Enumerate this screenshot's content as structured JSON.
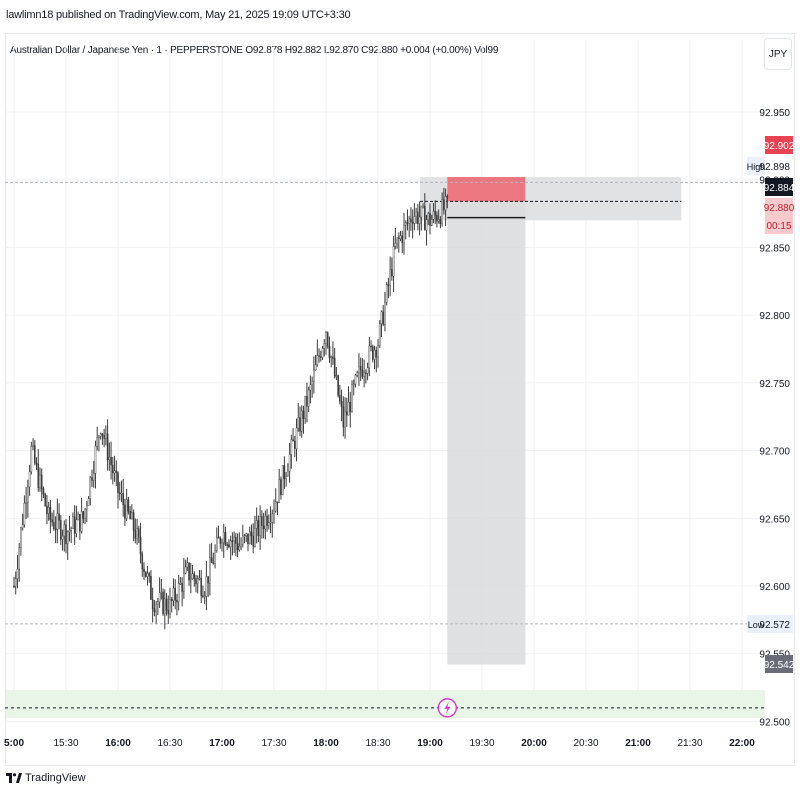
{
  "header": {
    "published_text": "lawlimn18 published on TradingView.com, May 21, 2025 19:09 UTC+3:30"
  },
  "symbol": {
    "description": "Australian Dollar / Japanese Yen · 1 · PEPPERSTONE",
    "ohlc": "O92.878  H92.882  L92.870  C92.880  +0.004 (+0.00%)  Vol99"
  },
  "currency_button": "JPY",
  "brand": {
    "name": "TradingView"
  },
  "colors": {
    "candle": "#3b3b3b",
    "stop_zone": "#ee6b76",
    "target_zone": "#d9dadc",
    "price_red": "#e84352",
    "price_dark": "#131722",
    "green_band": "#e9f5e6"
  },
  "chart_data": {
    "type": "candlestick",
    "title": "",
    "xlabel": "",
    "ylabel": "",
    "ylim": [
      92.5,
      93.0
    ],
    "x_ticks": [
      "5:00",
      "15:30",
      "16:00",
      "16:30",
      "17:00",
      "17:30",
      "18:00",
      "18:30",
      "19:00",
      "19:30",
      "20:00",
      "20:30",
      "21:00",
      "21:30",
      "22:00"
    ],
    "y_ticks": [
      "92.950",
      "92.900",
      "92.850",
      "92.800",
      "92.750",
      "92.700",
      "92.650",
      "92.600",
      "92.550",
      "92.500"
    ],
    "price_path": [
      [
        "15:00",
        92.6
      ],
      [
        "15:10",
        92.7
      ],
      [
        "15:20",
        92.65
      ],
      [
        "15:30",
        92.64
      ],
      [
        "15:40",
        92.65
      ],
      [
        "15:50",
        92.72
      ],
      [
        "16:00",
        92.67
      ],
      [
        "16:10",
        92.64
      ],
      [
        "16:20",
        92.59
      ],
      [
        "16:30",
        92.585
      ],
      [
        "16:40",
        92.61
      ],
      [
        "16:50",
        92.6
      ],
      [
        "17:00",
        92.64
      ],
      [
        "17:10",
        92.63
      ],
      [
        "17:20",
        92.64
      ],
      [
        "17:30",
        92.66
      ],
      [
        "17:40",
        92.7
      ],
      [
        "17:50",
        92.74
      ],
      [
        "18:00",
        92.79
      ],
      [
        "18:10",
        92.72
      ],
      [
        "18:20",
        92.76
      ],
      [
        "18:30",
        92.78
      ],
      [
        "18:40",
        92.85
      ],
      [
        "18:50",
        92.875
      ],
      [
        "19:00",
        92.87
      ],
      [
        "19:10",
        92.88
      ]
    ],
    "session_high": {
      "label": "High",
      "value": "92.898"
    },
    "session_low": {
      "label": "Low",
      "value": "92.572"
    },
    "price_labels": [
      {
        "value": "92.902",
        "style": "red"
      },
      {
        "value": "92.884",
        "style": "dark"
      },
      {
        "value": "92.880",
        "style": "pink"
      },
      {
        "value": "00:15",
        "style": "pink"
      },
      {
        "value": "92.542",
        "style": "gray"
      }
    ],
    "short_position": {
      "entry_time": "19:10",
      "exit_time": "19:55",
      "extension_time": "21:25",
      "entry": 92.884,
      "stop": 92.902,
      "target": 92.542
    },
    "alert_marker_time": "19:10",
    "alert_level": 92.51
  }
}
